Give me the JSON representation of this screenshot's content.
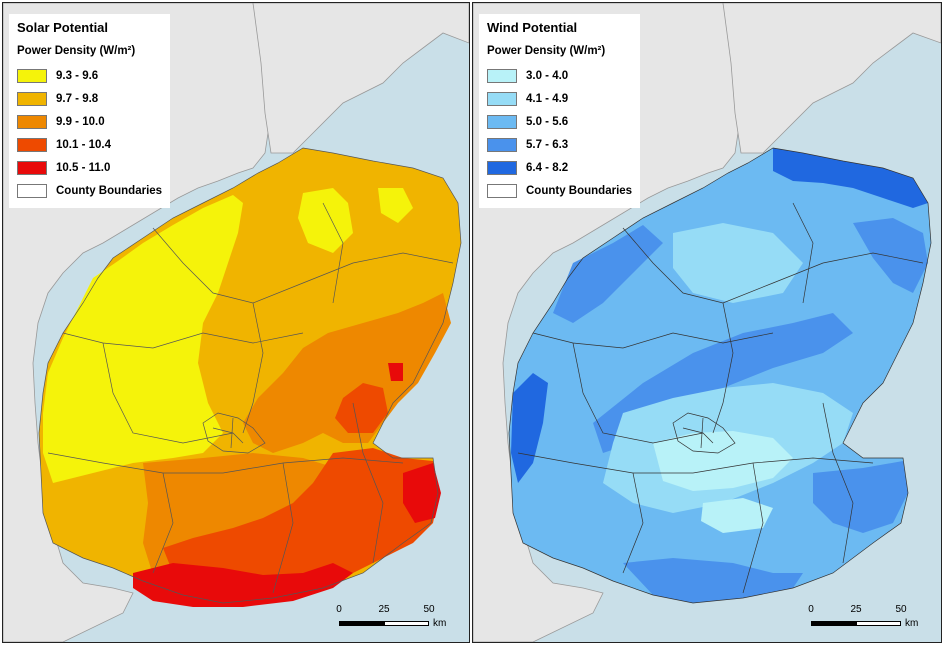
{
  "maps": [
    {
      "id": "solar",
      "title": "Solar Potential",
      "subtitle": "Power Density (W/m²)",
      "classes": [
        {
          "label": "9.3 - 9.6",
          "color": "#f5f30a"
        },
        {
          "label": "9.7 - 9.8",
          "color": "#f0b400"
        },
        {
          "label": "9.9 - 10.0",
          "color": "#ee8800"
        },
        {
          "label": "10.1 - 10.4",
          "color": "#ee4a00"
        },
        {
          "label": "10.5 - 11.0",
          "color": "#e80a0a"
        }
      ],
      "boundary_label": "County Boundaries"
    },
    {
      "id": "wind",
      "title": "Wind Potential",
      "subtitle": "Power Density (W/m²)",
      "classes": [
        {
          "label": "3.0 - 4.0",
          "color": "#b8f2f8"
        },
        {
          "label": "4.1 - 4.9",
          "color": "#96dcf6"
        },
        {
          "label": "5.0 - 5.6",
          "color": "#6cbaf2"
        },
        {
          "label": "5.7 - 6.3",
          "color": "#4a92ec"
        },
        {
          "label": "6.4 - 8.2",
          "color": "#2068e0"
        }
      ],
      "boundary_label": "County Boundaries"
    }
  ],
  "scalebar": {
    "ticks": [
      "0",
      "25",
      "50"
    ],
    "unit": "km"
  },
  "colors": {
    "sea": "#c9dfe8",
    "land": "#e6e6e6",
    "outline": "#555555"
  }
}
